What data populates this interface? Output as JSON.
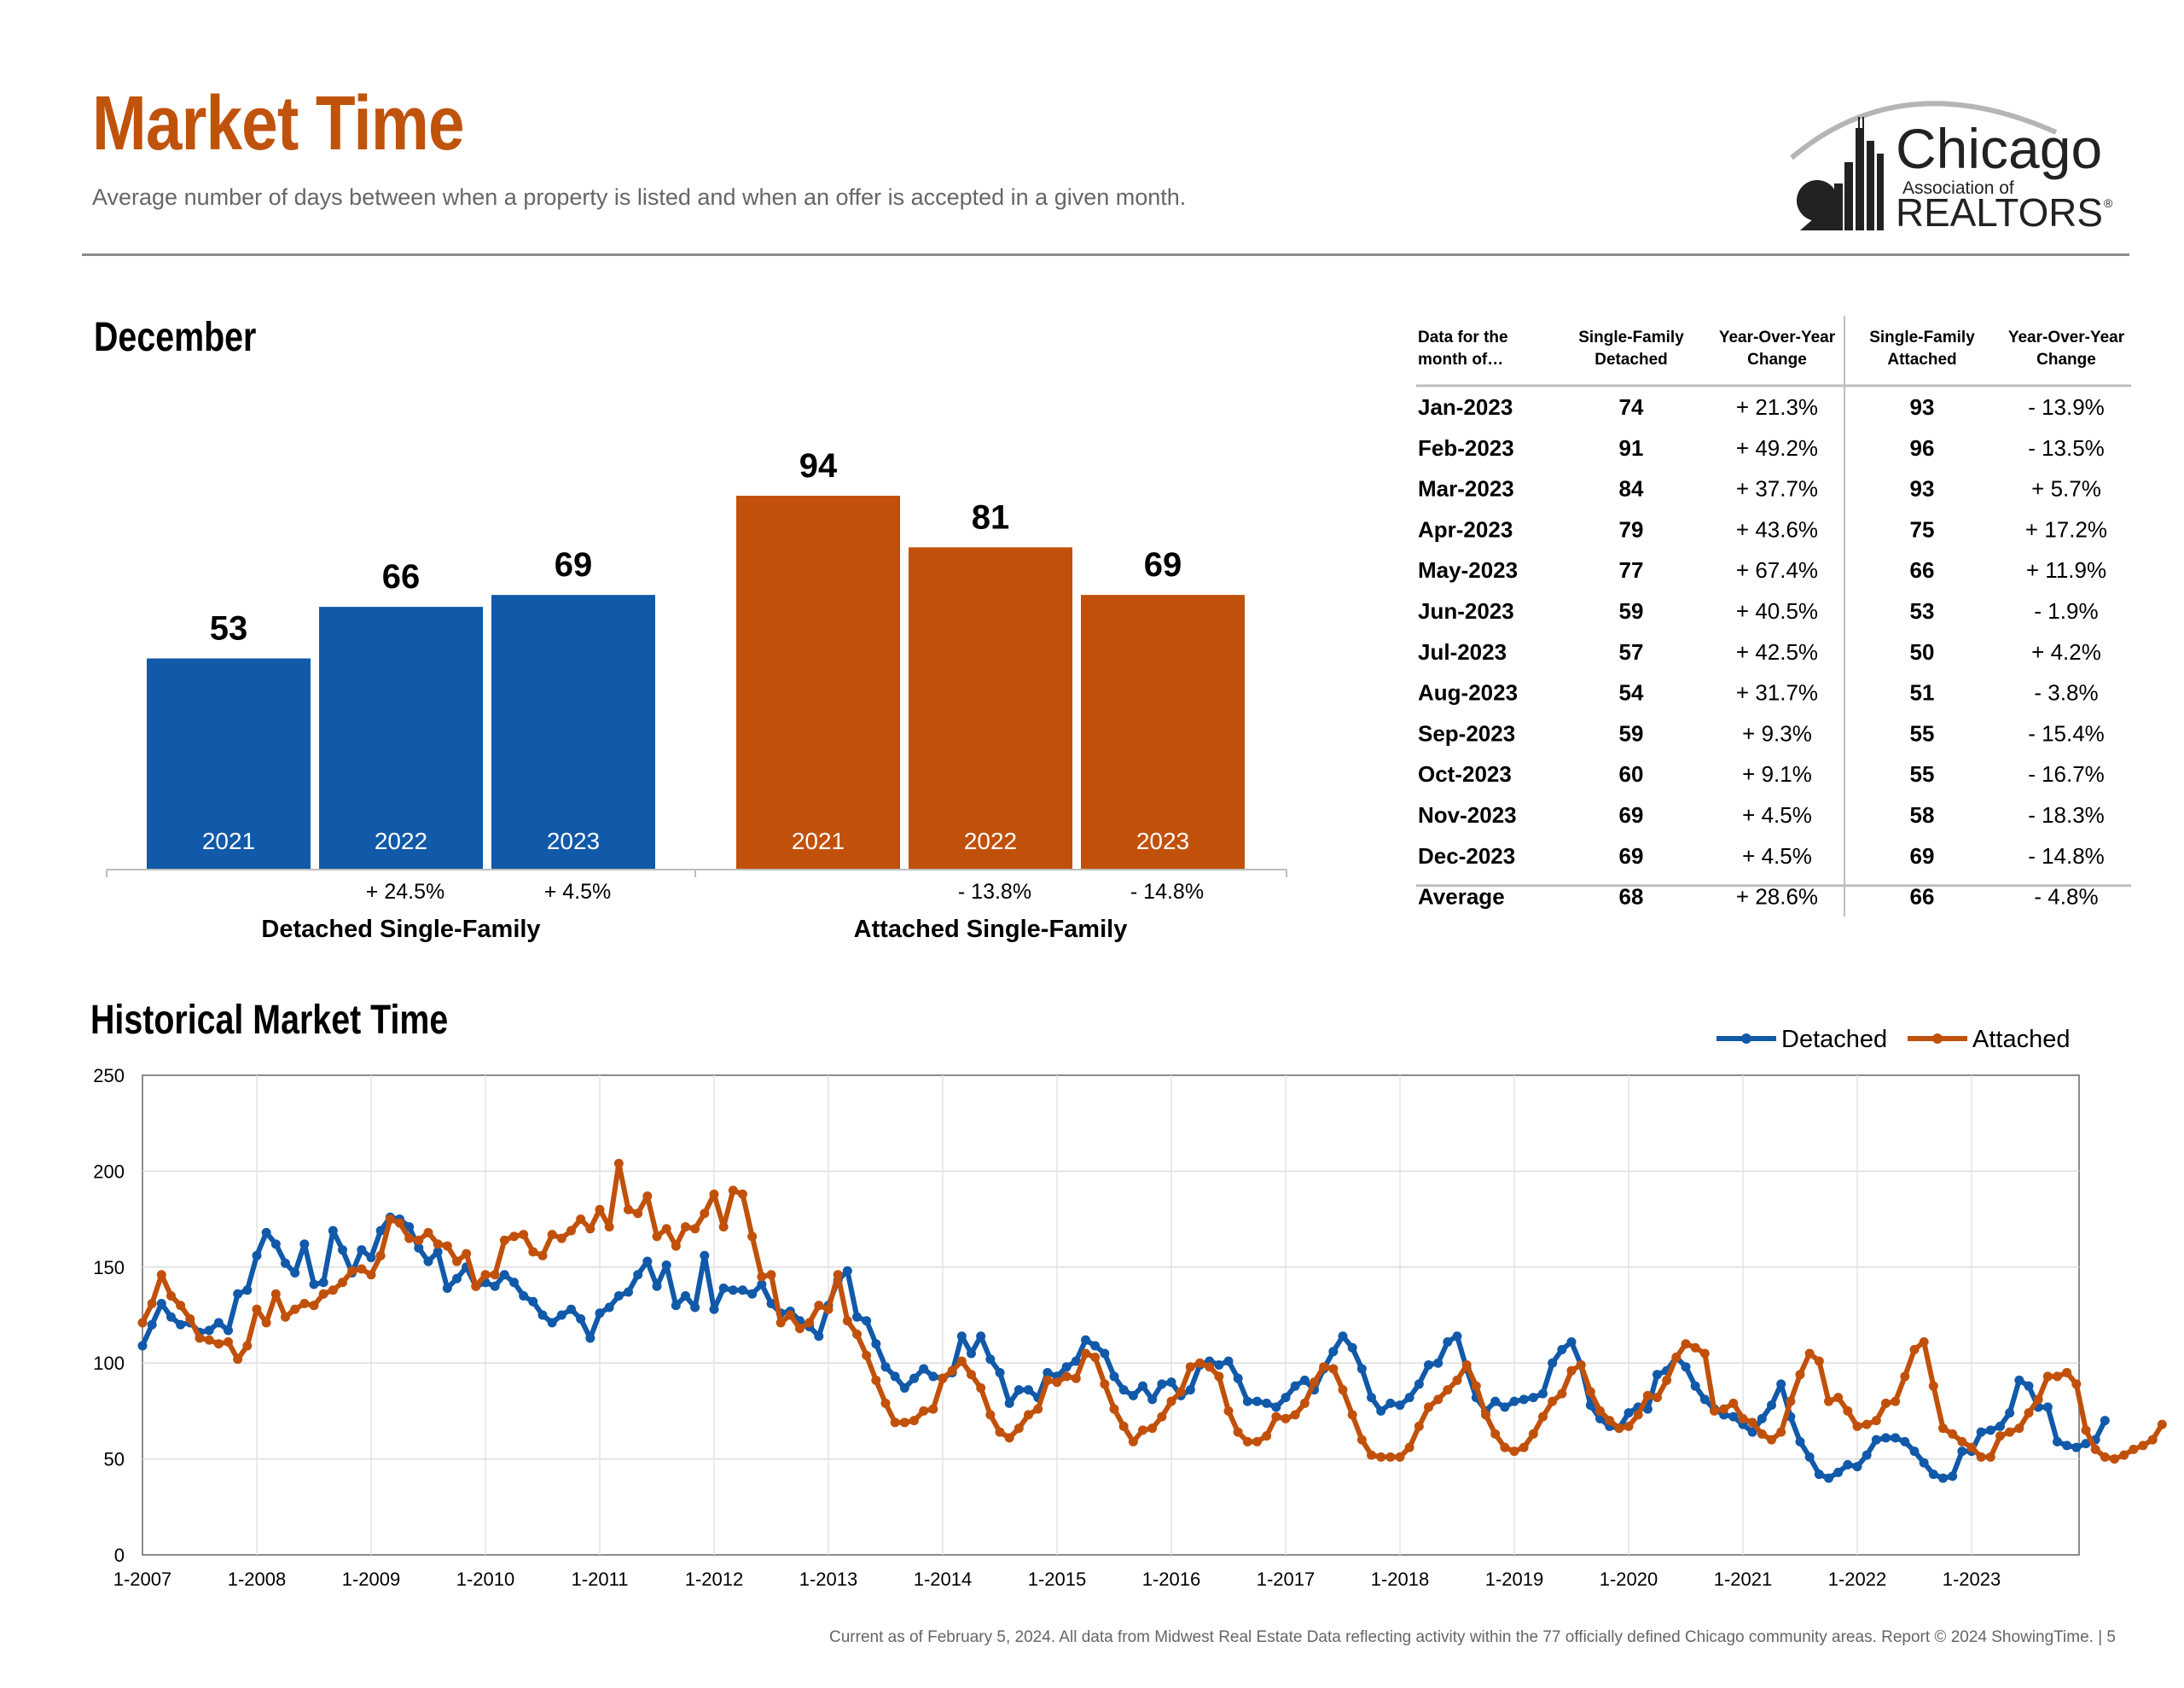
{
  "title": "Market Time",
  "subtitle": "Average number of days between when a property is listed and when an offer is accepted in a given month.",
  "logo": {
    "name": "Chicago",
    "line2": "Association of",
    "line3": "REALTORS",
    "registered": "®"
  },
  "colors": {
    "title": "#c0530c",
    "detached": "#1159a9",
    "attached": "#c1510a",
    "rule": "#8c8c8c"
  },
  "december": {
    "heading": "December",
    "chart_data": {
      "type": "bar",
      "groups": [
        {
          "name": "Detached Single-Family",
          "color": "#1159a9",
          "categories": [
            "2021",
            "2022",
            "2023"
          ],
          "values": [
            53,
            66,
            69
          ],
          "value_labels": [
            "53",
            "66",
            "69"
          ],
          "changes": [
            "",
            "+ 24.5%",
            "+ 4.5%"
          ]
        },
        {
          "name": "Attached Single-Family",
          "color": "#c1510a",
          "categories": [
            "2021",
            "2022",
            "2023"
          ],
          "values": [
            94,
            81,
            69
          ],
          "value_labels": [
            "94",
            "81",
            "69"
          ],
          "changes": [
            "",
            "- 13.8%",
            "- 14.8%"
          ]
        }
      ],
      "ylim": [
        0,
        110
      ]
    }
  },
  "table": {
    "headers": [
      "Data for the\nmonth of…",
      "Single-Family\nDetached",
      "Year-Over-Year\nChange",
      "Single-Family\nAttached",
      "Year-Over-Year\nChange"
    ],
    "rows": [
      [
        "Jan-2023",
        "74",
        "+ 21.3%",
        "93",
        "- 13.9%"
      ],
      [
        "Feb-2023",
        "91",
        "+ 49.2%",
        "96",
        "- 13.5%"
      ],
      [
        "Mar-2023",
        "84",
        "+ 37.7%",
        "93",
        "+ 5.7%"
      ],
      [
        "Apr-2023",
        "79",
        "+ 43.6%",
        "75",
        "+ 17.2%"
      ],
      [
        "May-2023",
        "77",
        "+ 67.4%",
        "66",
        "+ 11.9%"
      ],
      [
        "Jun-2023",
        "59",
        "+ 40.5%",
        "53",
        "- 1.9%"
      ],
      [
        "Jul-2023",
        "57",
        "+ 42.5%",
        "50",
        "+ 4.2%"
      ],
      [
        "Aug-2023",
        "54",
        "+ 31.7%",
        "51",
        "- 3.8%"
      ],
      [
        "Sep-2023",
        "59",
        "+ 9.3%",
        "55",
        "- 15.4%"
      ],
      [
        "Oct-2023",
        "60",
        "+ 9.1%",
        "55",
        "- 16.7%"
      ],
      [
        "Nov-2023",
        "69",
        "+ 4.5%",
        "58",
        "- 18.3%"
      ],
      [
        "Dec-2023",
        "69",
        "+ 4.5%",
        "69",
        "- 14.8%"
      ]
    ],
    "average": [
      "Average",
      "68",
      "+ 28.6%",
      "66",
      "- 4.8%"
    ]
  },
  "historical": {
    "heading": "Historical Market Time",
    "chart_data": {
      "type": "line",
      "x_start": "2007-01",
      "x_end": "2023-12",
      "x_ticks": [
        "1-2007",
        "1-2008",
        "1-2009",
        "1-2010",
        "1-2011",
        "1-2012",
        "1-2013",
        "1-2014",
        "1-2015",
        "1-2016",
        "1-2017",
        "1-2018",
        "1-2019",
        "1-2020",
        "1-2021",
        "1-2022",
        "1-2023"
      ],
      "y_ticks": [
        "0",
        "50",
        "100",
        "150",
        "200",
        "250"
      ],
      "ylim": [
        0,
        250
      ],
      "grid": true,
      "legend": "top-right",
      "series": [
        {
          "name": "Detached",
          "color": "#1159a9",
          "values": [
            109,
            120,
            131,
            124,
            120,
            121,
            116,
            117,
            121,
            117,
            136,
            138,
            156,
            168,
            162,
            152,
            147,
            162,
            141,
            142,
            169,
            159,
            147,
            159,
            155,
            169,
            176,
            175,
            171,
            160,
            153,
            158,
            139,
            144,
            150,
            140,
            142,
            140,
            146,
            142,
            135,
            132,
            125,
            121,
            125,
            128,
            123,
            113,
            126,
            129,
            135,
            137,
            146,
            153,
            140,
            151,
            130,
            135,
            129,
            156,
            128,
            139,
            138,
            138,
            136,
            141,
            131,
            126,
            127,
            122,
            119,
            114,
            130,
            143,
            148,
            124,
            122,
            110,
            98,
            93,
            87,
            92,
            97,
            93,
            92,
            95,
            114,
            105,
            114,
            102,
            95,
            79,
            86,
            86,
            82,
            95,
            93,
            98,
            101,
            112,
            109,
            105,
            93,
            86,
            83,
            88,
            81,
            89,
            90,
            83,
            86,
            99,
            101,
            99,
            101,
            92,
            80,
            80,
            79,
            77,
            82,
            88,
            91,
            86,
            97,
            106,
            114,
            108,
            97,
            82,
            75,
            79,
            78,
            82,
            89,
            99,
            100,
            111,
            114,
            97,
            82,
            75,
            80,
            77,
            80,
            81,
            82,
            84,
            100,
            107,
            111,
            99,
            78,
            71,
            67,
            66,
            74,
            77,
            76,
            94,
            96,
            103,
            98,
            88,
            81,
            76,
            73,
            72,
            68,
            64,
            71,
            78,
            89,
            72,
            59,
            51,
            42,
            40,
            43,
            47,
            46,
            52,
            60,
            61,
            61,
            59,
            54,
            48,
            42,
            40,
            41,
            54,
            54,
            64,
            65,
            67,
            74,
            91,
            88,
            77,
            77,
            59,
            57,
            56,
            58,
            60,
            70
          ]
        },
        {
          "name": "Attached",
          "color": "#c1510a",
          "values": [
            121,
            131,
            146,
            135,
            130,
            123,
            113,
            112,
            110,
            111,
            102,
            109,
            128,
            121,
            136,
            124,
            128,
            131,
            130,
            136,
            138,
            142,
            148,
            149,
            146,
            156,
            175,
            173,
            165,
            164,
            168,
            162,
            161,
            153,
            157,
            140,
            146,
            146,
            164,
            166,
            167,
            158,
            156,
            167,
            165,
            169,
            175,
            170,
            180,
            171,
            204,
            180,
            178,
            187,
            166,
            170,
            161,
            171,
            170,
            178,
            188,
            171,
            190,
            188,
            166,
            145,
            146,
            121,
            125,
            118,
            121,
            130,
            128,
            146,
            122,
            115,
            104,
            91,
            79,
            69,
            69,
            70,
            75,
            76,
            92,
            96,
            101,
            94,
            87,
            73,
            64,
            61,
            66,
            73,
            76,
            91,
            90,
            93,
            92,
            105,
            103,
            89,
            76,
            67,
            59,
            65,
            66,
            72,
            80,
            85,
            98,
            100,
            98,
            93,
            75,
            64,
            59,
            59,
            62,
            72,
            71,
            73,
            79,
            90,
            98,
            97,
            86,
            73,
            60,
            52,
            51,
            51,
            51,
            56,
            67,
            77,
            81,
            86,
            91,
            99,
            88,
            73,
            63,
            56,
            54,
            56,
            63,
            72,
            80,
            84,
            96,
            99,
            85,
            75,
            70,
            66,
            67,
            73,
            83,
            82,
            91,
            103,
            110,
            108,
            105,
            75,
            76,
            79,
            71,
            69,
            63,
            60,
            64,
            80,
            94,
            105,
            101,
            80,
            82,
            75,
            67,
            68,
            70,
            79,
            80,
            93,
            107,
            111,
            88,
            66,
            63,
            59,
            56,
            51,
            51,
            62,
            64,
            66,
            74,
            81,
            93,
            93,
            95,
            89,
            65,
            55,
            51,
            50,
            52,
            55,
            57,
            60,
            68
          ]
        }
      ]
    }
  },
  "footer": "Current as of February 5, 2024. All data from Midwest Real Estate Data reflecting activity within the 77 officially defined Chicago community areas. Report © 2024 ShowingTime.  |  5"
}
